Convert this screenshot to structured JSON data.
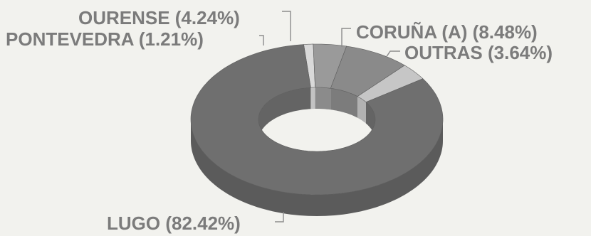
{
  "chart_data": {
    "type": "pie",
    "variant": "3d-donut",
    "title": "",
    "unit": "%",
    "legend": "none",
    "labels_position": "outside with leader lines",
    "slices": [
      {
        "name": "LUGO",
        "value": 82.42,
        "label": "LUGO (82.42%)",
        "color": "#6f6f6f"
      },
      {
        "name": "PONTEVEDRA",
        "value": 1.21,
        "label": "PONTEVEDRA (1.21%)",
        "color": "#d9d9d9"
      },
      {
        "name": "OURENSE",
        "value": 4.24,
        "label": "OURENSE (4.24%)",
        "color": "#9a9a9a"
      },
      {
        "name": "CORUÑA (A)",
        "value": 8.48,
        "label": "CORUÑA (A) (8.48%)",
        "color": "#8a8a8a"
      },
      {
        "name": "OUTRAS",
        "value": 3.64,
        "label": "OUTRAS (3.64%)",
        "color": "#c6c6c6"
      }
    ]
  }
}
